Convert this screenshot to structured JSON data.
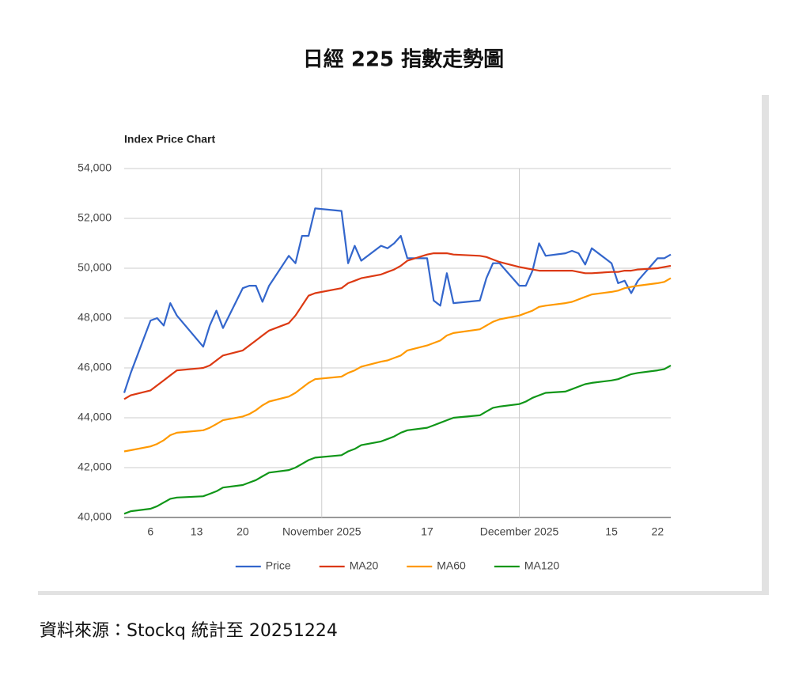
{
  "title": "日經 225 指數走勢圖",
  "source": "資料來源：Stockq  統計至 20251224",
  "chart_data": {
    "type": "line",
    "title": "Index Price Chart",
    "x": [
      "2025-10-02",
      "2025-10-03",
      "2025-10-06",
      "2025-10-07",
      "2025-10-08",
      "2025-10-09",
      "2025-10-10",
      "2025-10-14",
      "2025-10-15",
      "2025-10-16",
      "2025-10-17",
      "2025-10-20",
      "2025-10-21",
      "2025-10-22",
      "2025-10-23",
      "2025-10-24",
      "2025-10-27",
      "2025-10-28",
      "2025-10-29",
      "2025-10-30",
      "2025-10-31",
      "2025-11-04",
      "2025-11-05",
      "2025-11-06",
      "2025-11-07",
      "2025-11-10",
      "2025-11-11",
      "2025-11-12",
      "2025-11-13",
      "2025-11-14",
      "2025-11-17",
      "2025-11-18",
      "2025-11-19",
      "2025-11-20",
      "2025-11-21",
      "2025-11-25",
      "2025-11-26",
      "2025-11-27",
      "2025-11-28",
      "2025-12-01",
      "2025-12-02",
      "2025-12-03",
      "2025-12-04",
      "2025-12-05",
      "2025-12-08",
      "2025-12-09",
      "2025-12-10",
      "2025-12-11",
      "2025-12-12",
      "2025-12-15",
      "2025-12-16",
      "2025-12-17",
      "2025-12-18",
      "2025-12-19",
      "2025-12-22",
      "2025-12-23",
      "2025-12-24"
    ],
    "series": [
      {
        "name": "Price",
        "color": "#3366cc",
        "values": [
          45000,
          45800,
          47900,
          48000,
          47700,
          48600,
          48100,
          46850,
          47700,
          48300,
          47600,
          49200,
          49300,
          49300,
          48650,
          49300,
          50500,
          50200,
          51300,
          51300,
          52400,
          52300,
          50200,
          50900,
          50300,
          50900,
          50800,
          51000,
          51300,
          50400,
          50400,
          48700,
          48500,
          49800,
          48600,
          48700,
          49600,
          50200,
          50200,
          49300,
          49300,
          49900,
          51000,
          50500,
          50600,
          50700,
          50600,
          50150,
          50800,
          50200,
          49400,
          49500,
          49000,
          49500,
          50400,
          50400,
          50550
        ]
      },
      {
        "name": "MA20",
        "color": "#dc3912",
        "values": [
          44750,
          44900,
          45100,
          45300,
          45500,
          45700,
          45900,
          46000,
          46100,
          46300,
          46500,
          46700,
          46900,
          47100,
          47300,
          47500,
          47800,
          48100,
          48500,
          48900,
          49000,
          49200,
          49400,
          49500,
          49600,
          49750,
          49850,
          49950,
          50100,
          50300,
          50550,
          50600,
          50600,
          50600,
          50550,
          50500,
          50450,
          50350,
          50250,
          50050,
          50000,
          49950,
          49900,
          49900,
          49900,
          49900,
          49850,
          49800,
          49800,
          49850,
          49850,
          49900,
          49900,
          49950,
          50000,
          50050,
          50100
        ]
      },
      {
        "name": "MA60",
        "color": "#ff9900",
        "values": [
          42650,
          42700,
          42850,
          42950,
          43100,
          43300,
          43400,
          43500,
          43600,
          43750,
          43900,
          44050,
          44150,
          44300,
          44500,
          44650,
          44850,
          45000,
          45200,
          45400,
          45550,
          45650,
          45800,
          45900,
          46050,
          46250,
          46300,
          46400,
          46500,
          46700,
          46900,
          47000,
          47100,
          47300,
          47400,
          47550,
          47700,
          47850,
          47950,
          48100,
          48200,
          48300,
          48450,
          48500,
          48600,
          48650,
          48750,
          48850,
          48950,
          49050,
          49100,
          49200,
          49250,
          49300,
          49400,
          49450,
          49600
        ]
      },
      {
        "name": "MA120",
        "color": "#109618",
        "values": [
          40150,
          40250,
          40350,
          40450,
          40600,
          40750,
          40800,
          40850,
          40950,
          41050,
          41200,
          41300,
          41400,
          41500,
          41650,
          41800,
          41900,
          42000,
          42150,
          42300,
          42400,
          42500,
          42650,
          42750,
          42900,
          43050,
          43150,
          43250,
          43400,
          43500,
          43600,
          43700,
          43800,
          43900,
          44000,
          44100,
          44250,
          44400,
          44450,
          44550,
          44650,
          44800,
          44900,
          45000,
          45050,
          45150,
          45250,
          45350,
          45400,
          45500,
          45550,
          45650,
          45750,
          45800,
          45900,
          45950,
          46100
        ]
      }
    ],
    "xlim": [
      "2025-10-02",
      "2025-12-24"
    ],
    "xticks": [
      {
        "value": "2025-10-06",
        "label": "6"
      },
      {
        "value": "2025-10-13",
        "label": "13"
      },
      {
        "value": "2025-10-20",
        "label": "20"
      },
      {
        "value": "2025-11-01",
        "label": "November 2025"
      },
      {
        "value": "2025-11-17",
        "label": "17"
      },
      {
        "value": "2025-12-01",
        "label": "December 2025"
      },
      {
        "value": "2025-12-15",
        "label": "15"
      },
      {
        "value": "2025-12-22",
        "label": "22"
      }
    ],
    "ylim": [
      40000,
      54000
    ],
    "yticks": [
      {
        "value": 40000,
        "label": "40,000"
      },
      {
        "value": 42000,
        "label": "42,000"
      },
      {
        "value": 44000,
        "label": "44,000"
      },
      {
        "value": 46000,
        "label": "46,000"
      },
      {
        "value": 48000,
        "label": "48,000"
      },
      {
        "value": 50000,
        "label": "50,000"
      },
      {
        "value": 52000,
        "label": "52,000"
      },
      {
        "value": 54000,
        "label": "54,000"
      }
    ],
    "grid": true,
    "legend": "bottom"
  }
}
